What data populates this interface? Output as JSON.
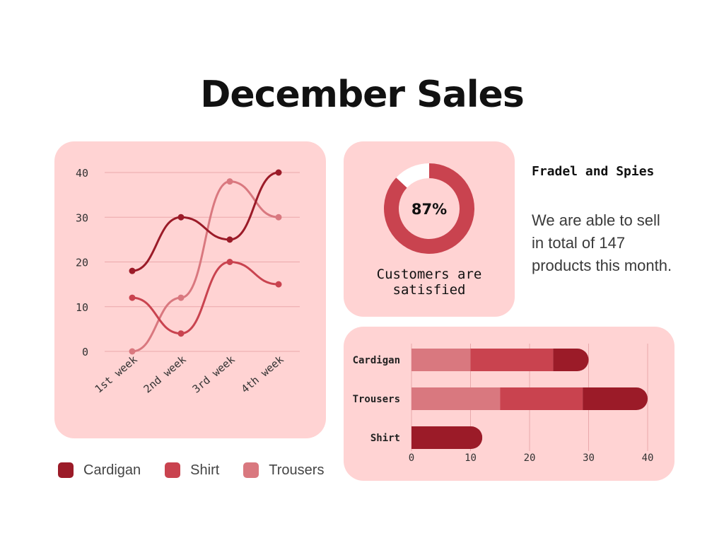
{
  "title": "December Sales",
  "colors": {
    "background": "#ffffff",
    "card": "#ffd3d3",
    "cardigan": "#9b1b28",
    "shirt": "#c9434f",
    "trousers": "#d9787f",
    "donut_rest": "#ffffff"
  },
  "legend": [
    {
      "label": "Cardigan",
      "color": "#9b1b28"
    },
    {
      "label": "Shirt",
      "color": "#c9434f"
    },
    {
      "label": "Trousers",
      "color": "#d9787f"
    }
  ],
  "side": {
    "heading": "Fradel and Spies",
    "text": "We are able to sell in total of 147 products this month."
  },
  "chart_data": [
    {
      "type": "line",
      "x": [
        "1st week",
        "2nd week",
        "3rd week",
        "4th week"
      ],
      "series": [
        {
          "name": "Cardigan",
          "values": [
            18,
            30,
            25,
            40
          ],
          "color": "#9b1b28"
        },
        {
          "name": "Shirt",
          "values": [
            12,
            4,
            20,
            15
          ],
          "color": "#c9434f"
        },
        {
          "name": "Trousers",
          "values": [
            0,
            12,
            38,
            30
          ],
          "color": "#d9787f"
        }
      ],
      "ylim": [
        0,
        40
      ],
      "yticks": [
        0,
        10,
        20,
        30,
        40
      ],
      "grid": true,
      "legend": "bottom"
    },
    {
      "type": "pie",
      "value_label": "87%",
      "caption": "Customers are satisfied",
      "slices": [
        {
          "name": "satisfied",
          "value": 87,
          "color": "#c9434f"
        },
        {
          "name": "rest",
          "value": 13,
          "color": "#ffffff"
        }
      ]
    },
    {
      "type": "bar",
      "orientation": "horizontal",
      "stacked": true,
      "categories": [
        "Cardigan",
        "Trousers",
        "Shirt"
      ],
      "segments": [
        [
          {
            "name": "Trousers",
            "value": 10
          },
          {
            "name": "Shirt",
            "value": 14
          },
          {
            "name": "Cardigan",
            "value": 6
          }
        ],
        [
          {
            "name": "Trousers",
            "value": 15
          },
          {
            "name": "Shirt",
            "value": 14
          },
          {
            "name": "Cardigan",
            "value": 11
          }
        ],
        [
          {
            "name": "Cardigan",
            "value": 12
          }
        ]
      ],
      "xlim": [
        0,
        40
      ],
      "xticks": [
        0,
        10,
        20,
        30,
        40
      ],
      "grid": true
    }
  ]
}
